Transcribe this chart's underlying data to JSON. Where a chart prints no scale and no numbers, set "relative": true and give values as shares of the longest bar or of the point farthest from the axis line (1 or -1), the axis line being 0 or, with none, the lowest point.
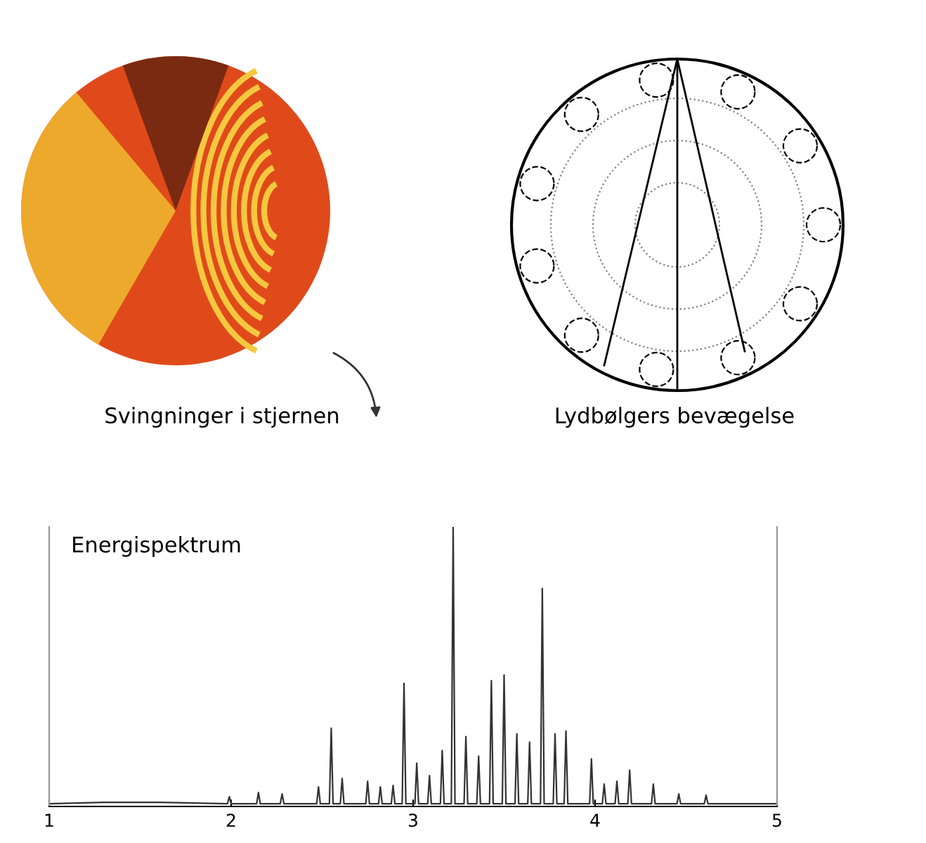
{
  "chart_data": {
    "type": "line",
    "title": "Energispektrum",
    "relative": true,
    "xlim": [
      1,
      5
    ],
    "xticks": [
      1,
      2,
      3,
      4,
      5
    ],
    "grid": false,
    "annotations": [
      "Svingninger i stjernen",
      "Lydbølgers bevægelse"
    ],
    "series": [
      {
        "color": "#333333",
        "x": [
          1.0,
          1.3,
          1.6,
          1.98,
          1.99,
          2.0,
          2.14,
          2.15,
          2.16,
          2.27,
          2.28,
          2.29,
          2.47,
          2.48,
          2.49,
          2.54,
          2.55,
          2.56,
          2.6,
          2.61,
          2.62,
          2.74,
          2.75,
          2.76,
          2.81,
          2.82,
          2.83,
          2.88,
          2.89,
          2.9,
          2.94,
          2.95,
          2.96,
          3.01,
          3.02,
          3.03,
          3.08,
          3.09,
          3.1,
          3.15,
          3.16,
          3.17,
          3.21,
          3.22,
          3.23,
          3.28,
          3.29,
          3.3,
          3.35,
          3.36,
          3.37,
          3.42,
          3.43,
          3.44,
          3.49,
          3.5,
          3.51,
          3.56,
          3.57,
          3.58,
          3.63,
          3.64,
          3.65,
          3.7,
          3.71,
          3.72,
          3.77,
          3.78,
          3.79,
          3.83,
          3.84,
          3.85,
          3.97,
          3.98,
          3.99,
          4.04,
          4.05,
          4.06,
          4.11,
          4.12,
          4.13,
          4.18,
          4.19,
          4.2,
          4.31,
          4.32,
          4.33,
          4.45,
          4.46,
          4.47,
          4.6,
          4.61,
          4.62,
          5.0
        ],
        "values": [
          0.01,
          0.015,
          0.015,
          0.01,
          0.035,
          0.01,
          0.01,
          0.05,
          0.01,
          0.01,
          0.045,
          0.01,
          0.01,
          0.07,
          0.01,
          0.01,
          0.28,
          0.01,
          0.01,
          0.1,
          0.01,
          0.01,
          0.09,
          0.01,
          0.01,
          0.07,
          0.01,
          0.01,
          0.075,
          0.01,
          0.01,
          0.44,
          0.01,
          0.01,
          0.155,
          0.01,
          0.01,
          0.11,
          0.01,
          0.01,
          0.2,
          0.01,
          0.01,
          1.0,
          0.01,
          0.01,
          0.25,
          0.01,
          0.01,
          0.18,
          0.01,
          0.01,
          0.45,
          0.01,
          0.01,
          0.47,
          0.01,
          0.01,
          0.26,
          0.01,
          0.01,
          0.23,
          0.01,
          0.01,
          0.78,
          0.01,
          0.01,
          0.26,
          0.01,
          0.01,
          0.27,
          0.01,
          0.01,
          0.17,
          0.01,
          0.01,
          0.08,
          0.01,
          0.01,
          0.09,
          0.01,
          0.01,
          0.13,
          0.01,
          0.01,
          0.08,
          0.01,
          0.01,
          0.045,
          0.01,
          0.01,
          0.04,
          0.01,
          0.01
        ]
      }
    ]
  }
}
